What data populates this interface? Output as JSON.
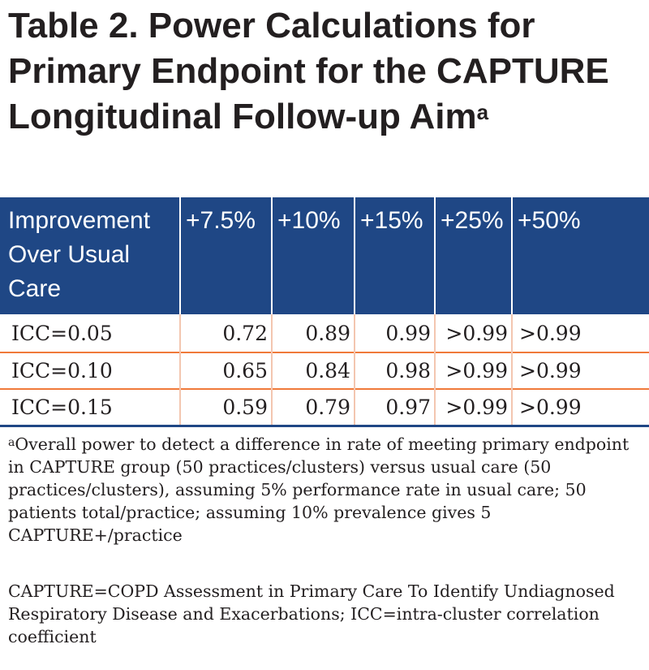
{
  "title": {
    "text": "Table 2. Power Calculations for Primary Endpoint for the CAPTURE Longitudinal Follow-up Aim",
    "superscript": "a"
  },
  "table": {
    "header": [
      "Improvement Over Usual Care",
      "+7.5%",
      "+10%",
      "+15%",
      "+25%",
      "+50%"
    ],
    "rows": [
      [
        "ICC=0.05",
        "0.72",
        "0.89",
        "0.99",
        ">0.99",
        ">0.99"
      ],
      [
        "ICC=0.10",
        "0.65",
        "0.84",
        "0.98",
        ">0.99",
        ">0.99"
      ],
      [
        "ICC=0.15",
        "0.59",
        "0.79",
        "0.97",
        ">0.99",
        ">0.99"
      ]
    ]
  },
  "footnote": {
    "marker": "a",
    "text": "Overall power to detect a difference in rate of meeting primary endpoint in CAPTURE group (50 practices/clusters) versus usual care (50 practices/clusters), assuming 5% performance rate in usual care; 50 patients total/practice; assuming 10% prevalence gives 5 CAPTURE+/practice"
  },
  "abbreviations": "CAPTURE=COPD Assessment in Primary Care To Identify Undiagnosed Respiratory Disease and Exacerbations; ICC=intra-cluster correlation coefficient",
  "colors": {
    "header_background": "#1f4785",
    "row_divider": "#f07a3a",
    "column_divider": "#f3c6b0",
    "text": "#231f20"
  }
}
